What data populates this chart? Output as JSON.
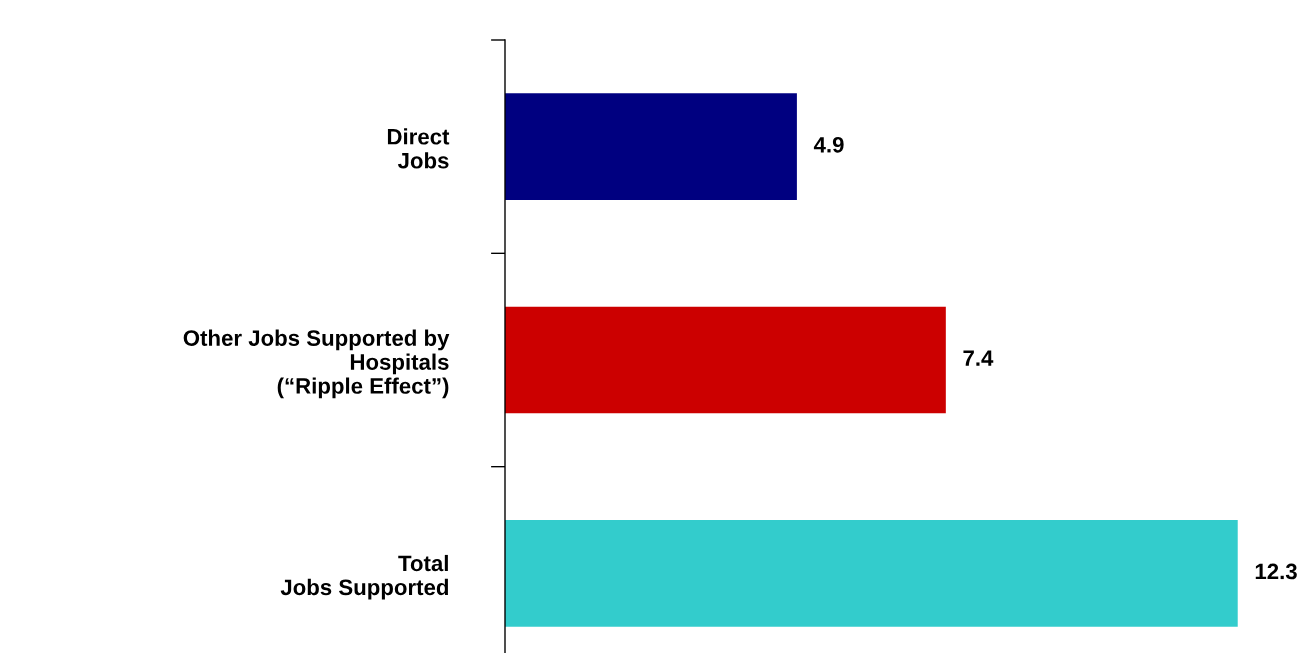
{
  "chart_data": {
    "type": "bar",
    "orientation": "horizontal",
    "categories": [
      "Direct\nJobs",
      "Other Jobs Supported by\nHospitals\n(“Ripple Effect”)",
      "Total\nJobs Supported"
    ],
    "values": [
      4.9,
      7.4,
      12.3
    ],
    "colors": [
      "#000080",
      "#cc0000",
      "#33cccc"
    ],
    "data_labels": true,
    "grid": false,
    "legend": false,
    "tick_labels": "y"
  }
}
